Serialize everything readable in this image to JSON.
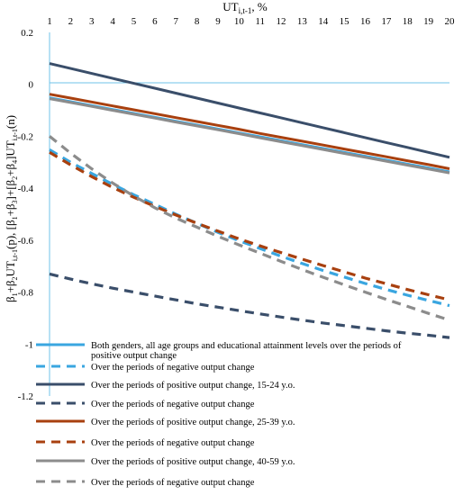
{
  "chart_data": {
    "type": "line",
    "x_axis_title": "UT",
    "x_axis_title_sub": "i,t-1",
    "x_axis_title_suffix": ", %",
    "y_axis_title_parts": [
      {
        "t": "β",
        "s": ""
      },
      {
        "t": "1",
        "s": "sub"
      },
      {
        "t": "+β",
        "s": ""
      },
      {
        "t": "2",
        "s": "sub"
      },
      {
        "t": "UT",
        "s": ""
      },
      {
        "t": "i,t-1",
        "s": "sub"
      },
      {
        "t": "(p), [β",
        "s": ""
      },
      {
        "t": "1",
        "s": "sub"
      },
      {
        "t": "+β",
        "s": ""
      },
      {
        "t": "3",
        "s": "sub"
      },
      {
        "t": "]+[β",
        "s": ""
      },
      {
        "t": "2",
        "s": "sub"
      },
      {
        "t": "+β",
        "s": ""
      },
      {
        "t": "4",
        "s": "sub"
      },
      {
        "t": "]UT",
        "s": ""
      },
      {
        "t": "i,t-1",
        "s": "sub"
      },
      {
        "t": "(n)",
        "s": ""
      }
    ],
    "x": [
      1,
      2,
      3,
      4,
      5,
      6,
      7,
      8,
      9,
      10,
      11,
      12,
      13,
      14,
      15,
      16,
      17,
      18,
      19,
      20
    ],
    "xlim": [
      1,
      20
    ],
    "ylim": [
      -1.2,
      0.2
    ],
    "y_ticks": [
      {
        "v": 0.2,
        "label": "0.2"
      },
      {
        "v": 0,
        "label": "0"
      },
      {
        "v": -0.2,
        "label": "-0.2"
      },
      {
        "v": -0.4,
        "label": "-0.4"
      },
      {
        "v": -0.6,
        "label": "-0.6"
      },
      {
        "v": -0.8,
        "label": "-0.8"
      },
      {
        "v": -1,
        "label": "-1"
      },
      {
        "v": -1.2,
        "label": "-1.2"
      }
    ],
    "grid": false,
    "legend_position": "bottom-inside",
    "series": [
      {
        "name": "Both genders, all age groups and educational attainment levels over the periods of positive output change",
        "color": "#3AA6E0",
        "dash": "solid",
        "values": [
          -0.052,
          -0.067,
          -0.082,
          -0.097,
          -0.112,
          -0.127,
          -0.142,
          -0.157,
          -0.172,
          -0.187,
          -0.202,
          -0.217,
          -0.232,
          -0.247,
          -0.262,
          -0.277,
          -0.292,
          -0.307,
          -0.322,
          -0.337
        ]
      },
      {
        "name": "Over the periods of negative output change",
        "color": "#3AA6E0",
        "dash": "dash",
        "values": [
          -0.252,
          -0.3,
          -0.343,
          -0.385,
          -0.425,
          -0.462,
          -0.5,
          -0.535,
          -0.57,
          -0.602,
          -0.632,
          -0.662,
          -0.69,
          -0.717,
          -0.742,
          -0.767,
          -0.79,
          -0.812,
          -0.832,
          -0.852
        ]
      },
      {
        "name": "Over the periods of positive output change, 15-24 y.o.",
        "color": "#3A4E6A",
        "dash": "solid",
        "values": [
          0.08,
          0.061,
          0.042,
          0.023,
          0.004,
          -0.015,
          -0.034,
          -0.053,
          -0.072,
          -0.091,
          -0.11,
          -0.129,
          -0.148,
          -0.167,
          -0.186,
          -0.205,
          -0.224,
          -0.243,
          -0.262,
          -0.281
        ]
      },
      {
        "name": "Over the periods of negative output change",
        "color": "#3A4E6A",
        "dash": "dash",
        "values": [
          -0.73,
          -0.75,
          -0.768,
          -0.785,
          -0.8,
          -0.815,
          -0.83,
          -0.845,
          -0.858,
          -0.871,
          -0.884,
          -0.896,
          -0.908,
          -0.919,
          -0.929,
          -0.939,
          -0.949,
          -0.958,
          -0.966,
          -0.975
        ]
      },
      {
        "name": "Over the periods of positive output change, 25-39 y.o.",
        "color": "#A8400F",
        "dash": "solid",
        "values": [
          -0.038,
          -0.053,
          -0.068,
          -0.083,
          -0.098,
          -0.113,
          -0.128,
          -0.143,
          -0.158,
          -0.173,
          -0.189,
          -0.204,
          -0.219,
          -0.234,
          -0.249,
          -0.264,
          -0.279,
          -0.294,
          -0.309,
          -0.325
        ]
      },
      {
        "name": "Over the periods of negative output change",
        "color": "#A8400F",
        "dash": "dash",
        "values": [
          -0.262,
          -0.31,
          -0.355,
          -0.397,
          -0.435,
          -0.47,
          -0.503,
          -0.535,
          -0.565,
          -0.595,
          -0.622,
          -0.648,
          -0.673,
          -0.698,
          -0.722,
          -0.746,
          -0.768,
          -0.79,
          -0.81,
          -0.83
        ]
      },
      {
        "name": "Over the periods of positive output change, 40-59 y.o.",
        "color": "#8C8C8C",
        "dash": "solid",
        "values": [
          -0.055,
          -0.07,
          -0.085,
          -0.1,
          -0.115,
          -0.13,
          -0.145,
          -0.16,
          -0.175,
          -0.19,
          -0.206,
          -0.221,
          -0.236,
          -0.251,
          -0.266,
          -0.281,
          -0.296,
          -0.311,
          -0.326,
          -0.341
        ]
      },
      {
        "name": "Over the periods of negative output change",
        "color": "#8C8C8C",
        "dash": "dash",
        "values": [
          -0.2,
          -0.265,
          -0.325,
          -0.38,
          -0.43,
          -0.475,
          -0.515,
          -0.55,
          -0.585,
          -0.618,
          -0.65,
          -0.682,
          -0.713,
          -0.743,
          -0.772,
          -0.8,
          -0.828,
          -0.855,
          -0.882,
          -0.908
        ]
      }
    ]
  }
}
